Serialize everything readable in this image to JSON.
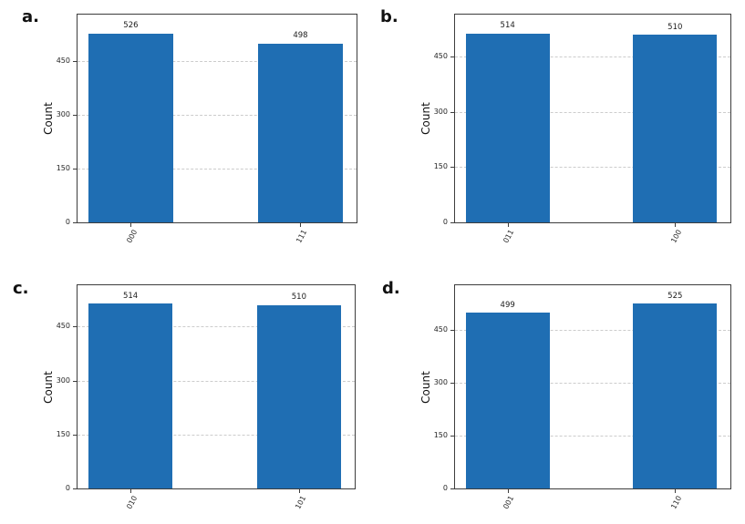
{
  "figure": {
    "background_color": "#ffffff",
    "bar_color": "#1f6eb3",
    "axis_color": "#3d3d3d",
    "grid_color": "#cccccc",
    "text_color": "#262626"
  },
  "chart_data": [
    {
      "type": "bar",
      "panel_label": "a.",
      "categories": [
        "000",
        "111"
      ],
      "values": [
        526,
        498
      ],
      "bar_value_labels": [
        "526",
        "498"
      ],
      "title": "",
      "xlabel": "",
      "ylabel": "Count",
      "yticks": [
        0,
        150,
        300,
        450
      ],
      "ylim": [
        0,
        579
      ],
      "grid": "horizontal-dashed",
      "legend": "none"
    },
    {
      "type": "bar",
      "panel_label": "b.",
      "categories": [
        "011",
        "100"
      ],
      "values": [
        514,
        510
      ],
      "bar_value_labels": [
        "514",
        "510"
      ],
      "title": "",
      "xlabel": "",
      "ylabel": "Count",
      "yticks": [
        0,
        150,
        300,
        450
      ],
      "ylim": [
        0,
        565
      ],
      "grid": "horizontal-dashed",
      "legend": "none"
    },
    {
      "type": "bar",
      "panel_label": "c.",
      "categories": [
        "010",
        "101"
      ],
      "values": [
        514,
        510
      ],
      "bar_value_labels": [
        "514",
        "510"
      ],
      "title": "",
      "xlabel": "",
      "ylabel": "Count",
      "yticks": [
        0,
        150,
        300,
        450
      ],
      "ylim": [
        0,
        565
      ],
      "grid": "horizontal-dashed",
      "legend": "none"
    },
    {
      "type": "bar",
      "panel_label": "d.",
      "categories": [
        "001",
        "110"
      ],
      "values": [
        499,
        525
      ],
      "bar_value_labels": [
        "499",
        "525"
      ],
      "title": "",
      "xlabel": "",
      "ylabel": "Count",
      "yticks": [
        0,
        150,
        300,
        450
      ],
      "ylim": [
        0,
        578
      ],
      "grid": "horizontal-dashed",
      "legend": "none"
    }
  ]
}
